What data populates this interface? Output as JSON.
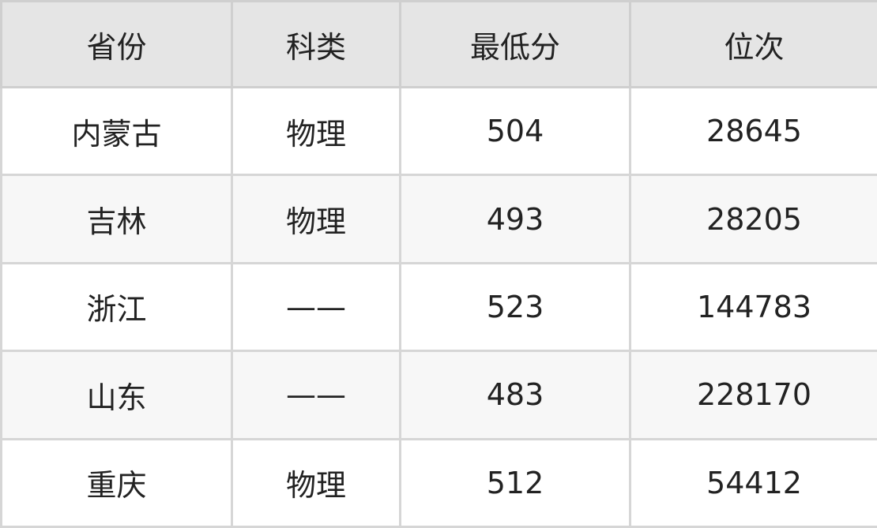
{
  "table": {
    "headers": [
      "省份",
      "科类",
      "最低分",
      "位次"
    ],
    "rows": [
      [
        "内蒙古",
        "物理",
        "504",
        "28645"
      ],
      [
        "吉林",
        "物理",
        "493",
        "28205"
      ],
      [
        "浙江",
        "——",
        "523",
        "144783"
      ],
      [
        "山东",
        "——",
        "483",
        "228170"
      ],
      [
        "重庆",
        "物理",
        "512",
        "54412"
      ]
    ]
  },
  "colors": {
    "header_bg": "#e5e5e5",
    "alt_row_bg": "#f7f7f7",
    "border": "#d6d6d6",
    "text": "#222222"
  }
}
